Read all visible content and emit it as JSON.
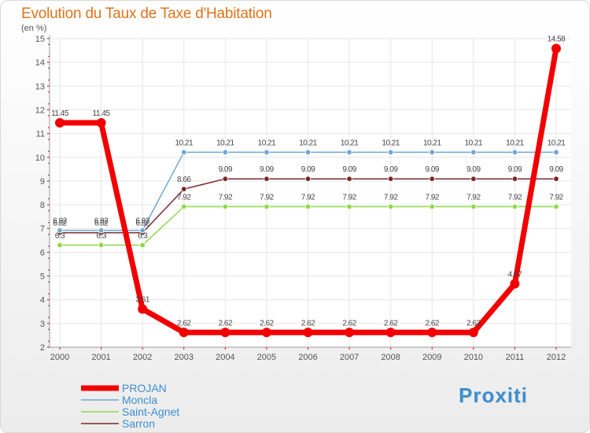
{
  "title": "Evolution du Taux de Taxe d'Habitation",
  "unit": "(en %)",
  "logo_text": "Proxiti",
  "chart_data": {
    "type": "line",
    "title": "Evolution du Taux de Taxe d'Habitation",
    "ylabel": "(en %)",
    "xlabel": "",
    "ylim": [
      2,
      15
    ],
    "yticks": [
      2,
      3,
      4,
      5,
      6,
      7,
      8,
      9,
      10,
      11,
      12,
      13,
      14,
      15
    ],
    "grid": true,
    "categories": [
      "2000",
      "2001",
      "2002",
      "2003",
      "2004",
      "2005",
      "2006",
      "2007",
      "2008",
      "2009",
      "2010",
      "2011",
      "2012"
    ],
    "series": [
      {
        "name": "PROJAN",
        "color": "#f20000",
        "values": [
          11.45,
          11.45,
          3.61,
          2.62,
          2.62,
          2.62,
          2.62,
          2.62,
          2.62,
          2.62,
          2.62,
          4.67,
          14.58
        ],
        "labels": [
          "11.45",
          "11.45",
          "3.61",
          "2.62",
          "2.62",
          "2.62",
          "2.62",
          "2.62",
          "2.62",
          "2.62",
          "2.62",
          "4.67",
          "14.58"
        ]
      },
      {
        "name": "Moncla",
        "color": "#6fa8d2",
        "values": [
          6.92,
          6.92,
          6.92,
          10.21,
          10.21,
          10.21,
          10.21,
          10.21,
          10.21,
          10.21,
          10.21,
          10.21,
          10.21
        ],
        "labels": [
          "6.92",
          "6.92",
          "6.92",
          "10.21",
          "10.21",
          "10.21",
          "10.21",
          "10.21",
          "10.21",
          "10.21",
          "10.21",
          "10.21",
          "10.21"
        ]
      },
      {
        "name": "Saint-Agnet",
        "color": "#8ed94a",
        "values": [
          6.3,
          6.3,
          6.3,
          7.92,
          7.92,
          7.92,
          7.92,
          7.92,
          7.92,
          7.92,
          7.92,
          7.92,
          7.92
        ],
        "labels": [
          "6.3",
          "6.3",
          "6.3",
          "7.92",
          "7.92",
          "7.92",
          "7.92",
          "7.92",
          "7.92",
          "7.92",
          "7.92",
          "7.92",
          "7.92"
        ]
      },
      {
        "name": "Sarron",
        "color": "#7a2a2a",
        "values": [
          6.82,
          6.82,
          6.82,
          8.66,
          9.09,
          9.09,
          9.09,
          9.09,
          9.09,
          9.09,
          9.09,
          9.09,
          9.09
        ],
        "labels": [
          "6.82",
          "6.82",
          "6.82",
          "8.66",
          "9.09",
          "9.09",
          "9.09",
          "9.09",
          "9.09",
          "9.09",
          "9.09",
          "9.09",
          "9.09"
        ]
      }
    ]
  }
}
